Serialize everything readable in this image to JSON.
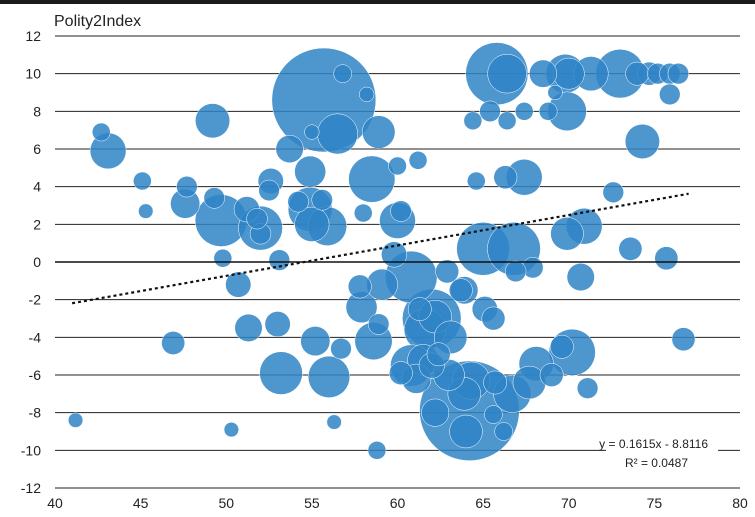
{
  "chart_data": {
    "type": "scatter",
    "title": "",
    "ylabel": "Polity2Index",
    "xlabel": "",
    "xlim": [
      40,
      80
    ],
    "ylim": [
      -12,
      12
    ],
    "x_ticks": [
      "40",
      "45",
      "50",
      "55",
      "60",
      "65",
      "70",
      "75",
      "80"
    ],
    "y_ticks": [
      "12",
      "10",
      "8",
      "6",
      "4",
      "2",
      "0",
      "-2",
      "-4",
      "-6",
      "-8",
      "-10",
      "-12"
    ],
    "grid": true,
    "bubble_color": "#2f84c6",
    "trendline": {
      "slope": 0.1615,
      "intercept": -8.8116,
      "x_range": [
        41,
        77
      ],
      "style": "dotted",
      "equation": "y = 0.1615x - 8.8116",
      "r_squared": "R² = 0.0487"
    },
    "points": [
      {
        "x": 55.7,
        "y": 8.6,
        "size": 100
      },
      {
        "x": 64.2,
        "y": -7.9,
        "size": 92
      },
      {
        "x": 65.8,
        "y": 10.0,
        "size": 36
      },
      {
        "x": 62.0,
        "y": -3.0,
        "size": 32
      },
      {
        "x": 65.0,
        "y": 0.7,
        "size": 26
      },
      {
        "x": 66.8,
        "y": 0.7,
        "size": 26
      },
      {
        "x": 60.8,
        "y": -0.8,
        "size": 25
      },
      {
        "x": 49.7,
        "y": 2.2,
        "size": 25
      },
      {
        "x": 73.0,
        "y": 10.0,
        "size": 22
      },
      {
        "x": 70.2,
        "y": -4.8,
        "size": 20
      },
      {
        "x": 58.5,
        "y": 4.4,
        "size": 20
      },
      {
        "x": 54.9,
        "y": 2.8,
        "size": 18
      },
      {
        "x": 52.0,
        "y": 1.8,
        "size": 18
      },
      {
        "x": 53.2,
        "y": -5.9,
        "size": 17
      },
      {
        "x": 56.0,
        "y": -6.1,
        "size": 16
      },
      {
        "x": 61.6,
        "y": -3.6,
        "size": 16
      },
      {
        "x": 60.8,
        "y": -5.5,
        "size": 16
      },
      {
        "x": 56.5,
        "y": 6.8,
        "size": 15
      },
      {
        "x": 69.8,
        "y": 10.0,
        "size": 14
      },
      {
        "x": 66.4,
        "y": 10.0,
        "size": 14
      },
      {
        "x": 69.9,
        "y": 8.0,
        "size": 14
      },
      {
        "x": 66.7,
        "y": -7.0,
        "size": 13
      },
      {
        "x": 64.3,
        "y": -6.3,
        "size": 13
      },
      {
        "x": 55.9,
        "y": 1.9,
        "size": 14
      },
      {
        "x": 58.6,
        "y": -4.2,
        "size": 13
      },
      {
        "x": 67.4,
        "y": 4.5,
        "size": 12
      },
      {
        "x": 70.9,
        "y": 1.9,
        "size": 12
      },
      {
        "x": 74.3,
        "y": 6.4,
        "size": 11
      },
      {
        "x": 71.3,
        "y": 10.0,
        "size": 11
      },
      {
        "x": 43.1,
        "y": 5.9,
        "size": 12
      },
      {
        "x": 49.2,
        "y": 7.5,
        "size": 11
      },
      {
        "x": 60.0,
        "y": 2.2,
        "size": 12
      },
      {
        "x": 68.1,
        "y": -5.4,
        "size": 11
      },
      {
        "x": 67.7,
        "y": -6.4,
        "size": 10
      },
      {
        "x": 63.9,
        "y": -7.0,
        "size": 10
      },
      {
        "x": 64.0,
        "y": -9.0,
        "size": 10
      },
      {
        "x": 62.2,
        "y": -2.9,
        "size": 10
      },
      {
        "x": 61.5,
        "y": -5.2,
        "size": 9
      },
      {
        "x": 55.0,
        "y": 2.0,
        "size": 11
      },
      {
        "x": 57.9,
        "y": -2.4,
        "size": 9
      },
      {
        "x": 63.1,
        "y": -4.0,
        "size": 10
      },
      {
        "x": 63.0,
        "y": -6.0,
        "size": 9
      },
      {
        "x": 61.1,
        "y": -6.2,
        "size": 8
      },
      {
        "x": 58.9,
        "y": 6.9,
        "size": 10
      },
      {
        "x": 69.9,
        "y": 1.5,
        "size": 10
      },
      {
        "x": 70.0,
        "y": 10.0,
        "size": 9
      },
      {
        "x": 59.1,
        "y": -1.2,
        "size": 9
      },
      {
        "x": 54.9,
        "y": 4.8,
        "size": 9
      },
      {
        "x": 55.2,
        "y": -4.2,
        "size": 8
      },
      {
        "x": 47.6,
        "y": 3.1,
        "size": 8
      },
      {
        "x": 62.2,
        "y": -8.0,
        "size": 7
      },
      {
        "x": 63.9,
        "y": -1.5,
        "size": 7
      },
      {
        "x": 51.3,
        "y": -3.5,
        "size": 7
      },
      {
        "x": 53.0,
        "y": -3.3,
        "size": 6
      },
      {
        "x": 50.7,
        "y": -1.2,
        "size": 6
      },
      {
        "x": 53.7,
        "y": 6.0,
        "size": 7
      },
      {
        "x": 52.6,
        "y": 4.3,
        "size": 6
      },
      {
        "x": 51.2,
        "y": 2.8,
        "size": 6
      },
      {
        "x": 70.7,
        "y": -0.8,
        "size": 7
      },
      {
        "x": 59.8,
        "y": 0.4,
        "size": 6
      },
      {
        "x": 65.1,
        "y": -2.5,
        "size": 6
      },
      {
        "x": 68.5,
        "y": 10.0,
        "size": 7
      },
      {
        "x": 46.9,
        "y": -4.3,
        "size": 5
      },
      {
        "x": 75.7,
        "y": 0.2,
        "size": 5
      },
      {
        "x": 73.6,
        "y": 0.7,
        "size": 5
      },
      {
        "x": 76.7,
        "y": -4.1,
        "size": 5
      },
      {
        "x": 47.7,
        "y": 4.0,
        "size": 4
      },
      {
        "x": 65.7,
        "y": -6.4,
        "size": 5
      },
      {
        "x": 63.7,
        "y": -1.5,
        "size": 5
      },
      {
        "x": 65.6,
        "y": -3.0,
        "size": 5
      },
      {
        "x": 67.9,
        "y": -0.3,
        "size": 4
      },
      {
        "x": 66.3,
        "y": 4.5,
        "size": 5
      },
      {
        "x": 56.7,
        "y": -4.6,
        "size": 4
      },
      {
        "x": 58.9,
        "y": -3.3,
        "size": 4
      },
      {
        "x": 62.4,
        "y": -4.9,
        "size": 5
      },
      {
        "x": 61.3,
        "y": -2.5,
        "size": 5
      },
      {
        "x": 62.0,
        "y": -5.5,
        "size": 6
      },
      {
        "x": 60.2,
        "y": -5.9,
        "size": 5
      },
      {
        "x": 69.0,
        "y": -6.0,
        "size": 5
      },
      {
        "x": 69.6,
        "y": -4.5,
        "size": 5
      },
      {
        "x": 57.8,
        "y": -1.3,
        "size": 5
      },
      {
        "x": 52.5,
        "y": 3.8,
        "size": 4
      },
      {
        "x": 74.7,
        "y": 10.0,
        "size": 5
      },
      {
        "x": 75.2,
        "y": 10.0,
        "size": 4
      },
      {
        "x": 75.9,
        "y": 10.0,
        "size": 4
      },
      {
        "x": 76.4,
        "y": 10.0,
        "size": 4
      },
      {
        "x": 74.0,
        "y": 10.0,
        "size": 5
      },
      {
        "x": 75.9,
        "y": 8.9,
        "size": 4
      },
      {
        "x": 72.6,
        "y": 3.7,
        "size": 4
      },
      {
        "x": 49.3,
        "y": 3.4,
        "size": 4
      },
      {
        "x": 54.2,
        "y": 3.2,
        "size": 4
      },
      {
        "x": 55.6,
        "y": 3.3,
        "size": 4
      },
      {
        "x": 60.2,
        "y": 2.7,
        "size": 4
      },
      {
        "x": 65.4,
        "y": 8.0,
        "size": 4
      },
      {
        "x": 64.4,
        "y": 7.5,
        "size": 3
      },
      {
        "x": 61.2,
        "y": 5.4,
        "size": 3
      },
      {
        "x": 60.0,
        "y": 5.1,
        "size": 3
      },
      {
        "x": 45.1,
        "y": 4.3,
        "size": 3
      },
      {
        "x": 42.7,
        "y": 6.9,
        "size": 3
      },
      {
        "x": 41.2,
        "y": -8.4,
        "size": 2
      },
      {
        "x": 50.3,
        "y": -8.9,
        "size": 2
      },
      {
        "x": 56.3,
        "y": -8.5,
        "size": 2
      },
      {
        "x": 58.8,
        "y": -10.0,
        "size": 3
      },
      {
        "x": 71.1,
        "y": -6.7,
        "size": 4
      },
      {
        "x": 66.9,
        "y": -0.5,
        "size": 4
      },
      {
        "x": 53.1,
        "y": 0.1,
        "size": 4
      },
      {
        "x": 49.8,
        "y": 0.2,
        "size": 3
      },
      {
        "x": 56.8,
        "y": 10.0,
        "size": 3
      },
      {
        "x": 45.3,
        "y": 2.7,
        "size": 2
      },
      {
        "x": 65.6,
        "y": -8.1,
        "size": 3
      },
      {
        "x": 66.2,
        "y": -9.0,
        "size": 3
      },
      {
        "x": 62.9,
        "y": -0.5,
        "size": 5
      },
      {
        "x": 64.6,
        "y": 4.3,
        "size": 3
      },
      {
        "x": 67.4,
        "y": 8.0,
        "size": 3
      },
      {
        "x": 66.4,
        "y": 7.5,
        "size": 3
      },
      {
        "x": 68.8,
        "y": 8.0,
        "size": 3
      },
      {
        "x": 55.0,
        "y": 6.9,
        "size": 2
      },
      {
        "x": 58.2,
        "y": 8.9,
        "size": 2
      },
      {
        "x": 69.2,
        "y": 9.0,
        "size": 2
      },
      {
        "x": 52.0,
        "y": 1.5,
        "size": 4
      },
      {
        "x": 51.8,
        "y": 2.3,
        "size": 4
      },
      {
        "x": 58.0,
        "y": 2.6,
        "size": 3
      }
    ]
  }
}
